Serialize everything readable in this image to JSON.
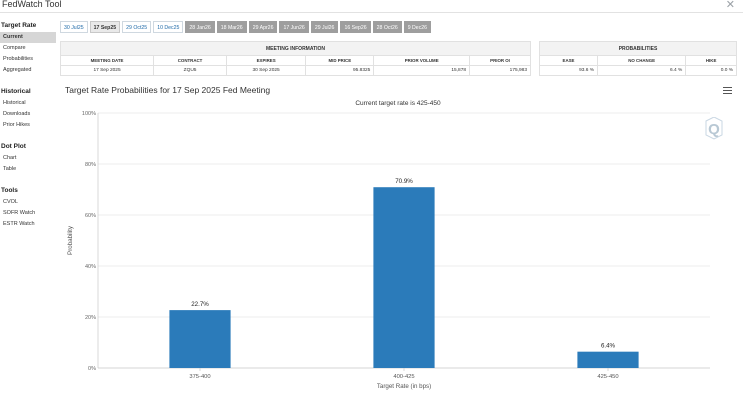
{
  "app": {
    "title": "FedWatch Tool"
  },
  "sidebar": [
    {
      "heading": "Target Rate",
      "items": [
        {
          "label": "Current",
          "active": true
        },
        {
          "label": "Compare"
        },
        {
          "label": "Probabilities"
        },
        {
          "label": "Aggregated"
        }
      ]
    },
    {
      "heading": "Historical",
      "items": [
        {
          "label": "Historical"
        },
        {
          "label": "Downloads"
        },
        {
          "label": "Prior Hikes"
        }
      ]
    },
    {
      "heading": "Dot Plot",
      "items": [
        {
          "label": "Chart"
        },
        {
          "label": "Table"
        }
      ]
    },
    {
      "heading": "Tools",
      "items": [
        {
          "label": "CVOL"
        },
        {
          "label": "SOFR Watch"
        },
        {
          "label": "ESTR Watch"
        }
      ]
    }
  ],
  "tabs": [
    {
      "label": "30 Jul25",
      "state": "past"
    },
    {
      "label": "17 Sep25",
      "state": "selected"
    },
    {
      "label": "29 Oct25",
      "state": "past"
    },
    {
      "label": "10 Dec25",
      "state": "past"
    },
    {
      "label": "28 Jan26",
      "state": "future"
    },
    {
      "label": "18 Mar26",
      "state": "future"
    },
    {
      "label": "29 Apr26",
      "state": "future"
    },
    {
      "label": "17 Jun26",
      "state": "future"
    },
    {
      "label": "29 Jul26",
      "state": "future"
    },
    {
      "label": "16 Sep26",
      "state": "future"
    },
    {
      "label": "28 Oct26",
      "state": "future"
    },
    {
      "label": "9 Dec26",
      "state": "future"
    }
  ],
  "meeting_info": {
    "heading": "MEETING INFORMATION",
    "columns": [
      "MEETING DATE",
      "CONTRACT",
      "EXPIRES",
      "MID PRICE",
      "PRIOR VOLUME",
      "PRIOR OI"
    ],
    "row": [
      "17 Sep 2025",
      "ZQU5",
      "30 Sep 2025",
      "95.8325",
      "15,878",
      "175,983"
    ]
  },
  "probabilities": {
    "heading": "PROBABILITIES",
    "columns": [
      "EASE",
      "NO CHANGE",
      "HIKE"
    ],
    "row": [
      "93.6 %",
      "6.4 %",
      "0.0 %"
    ]
  },
  "chart": {
    "title": "Target Rate Probabilities for 17 Sep 2025 Fed Meeting",
    "subtitle": "Current target rate is 425-450"
  },
  "chart_data": {
    "type": "bar",
    "categories": [
      "375-400",
      "400-425",
      "425-450"
    ],
    "values": [
      22.7,
      70.9,
      6.4
    ],
    "data_labels": [
      "22.7%",
      "70.9%",
      "6.4%"
    ],
    "xlabel": "Target Rate (in bps)",
    "ylabel": "Probability",
    "ylim": [
      0,
      100
    ],
    "yticks": [
      "0%",
      "20%",
      "40%",
      "60%",
      "80%",
      "100%"
    ],
    "grid": true,
    "bar_color": "#2b7bba"
  }
}
